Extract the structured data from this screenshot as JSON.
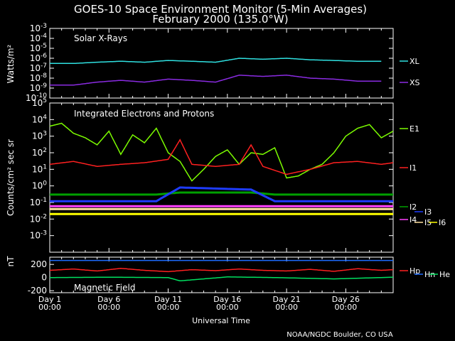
{
  "title_line1": "GOES-10 Space Environment Monitor (5-Min Averages)",
  "title_line2": "February 2000 (135.0°W)",
  "footer": "NOAA/NGDC Boulder, CO USA",
  "colors": {
    "background": "#000000",
    "axes": "#ffffff",
    "XL": "#2fe0e0",
    "XS": "#8a2be2",
    "E1": "#7cfc00",
    "I1": "#ff2020",
    "I2": "#00a000",
    "I3": "#1e3cff",
    "I4": "#ff40ff",
    "I5": "#ffe0a0",
    "I6": "#ffff00",
    "Hp": "#ff2020",
    "Hn": "#1e6cff",
    "He": "#00e060"
  },
  "chart_data": [
    {
      "type": "line",
      "panel_label": "Solar X-Rays",
      "ylabel": "Watts/m²",
      "yscale": "log",
      "ylim": [
        1e-10,
        0.001
      ],
      "y_tick_labels": [
        "10^-3",
        "10^-4",
        "10^-5",
        "10^-6",
        "10^-7",
        "10^-8",
        "10^-9",
        "10^-10"
      ],
      "xlim": [
        1,
        30
      ],
      "series": [
        {
          "name": "XL",
          "x": [
            1,
            3,
            5,
            7,
            9,
            11,
            13,
            15,
            17,
            19,
            21,
            23,
            25,
            27,
            29
          ],
          "values": [
            3e-07,
            3e-07,
            4e-07,
            5e-07,
            4e-07,
            6e-07,
            5e-07,
            4e-07,
            1e-06,
            8e-07,
            1e-06,
            7e-07,
            6e-07,
            5e-07,
            5e-07
          ]
        },
        {
          "name": "XS",
          "x": [
            1,
            3,
            5,
            7,
            9,
            11,
            13,
            15,
            17,
            19,
            21,
            23,
            25,
            27,
            29
          ],
          "values": [
            2e-09,
            2e-09,
            4e-09,
            6e-09,
            4e-09,
            8e-09,
            6e-09,
            4e-09,
            2e-08,
            1.5e-08,
            2e-08,
            1e-08,
            8e-09,
            5e-09,
            5e-09
          ]
        }
      ]
    },
    {
      "type": "line",
      "panel_label": "Integrated Electrons and Protons",
      "ylabel": "Counts/cm² sec sr",
      "yscale": "log",
      "ylim": [
        0.0001,
        100000.0
      ],
      "y_tick_labels": [
        "10^5",
        "10^4",
        "10^3",
        "10^2",
        "10^1",
        "10^0",
        "10^-1",
        "10^-2",
        "10^-3"
      ],
      "xlim": [
        1,
        30
      ],
      "series": [
        {
          "name": "E1",
          "x": [
            1,
            2,
            3,
            4,
            5,
            6,
            7,
            8,
            9,
            10,
            11,
            12,
            13,
            14,
            15,
            16,
            17,
            18,
            19,
            20,
            21,
            22,
            23,
            24,
            25,
            26,
            27,
            28,
            29,
            30
          ],
          "values": [
            4000,
            6000,
            1500,
            800,
            300,
            2000,
            80,
            1200,
            400,
            3000,
            100,
            30,
            2,
            10,
            60,
            150,
            20,
            100,
            80,
            200,
            3,
            4,
            10,
            20,
            100,
            1000,
            3000,
            5000,
            800,
            2000
          ]
        },
        {
          "name": "I1",
          "x": [
            1,
            3,
            5,
            7,
            9,
            11,
            12,
            13,
            15,
            17,
            18,
            19,
            21,
            23,
            25,
            27,
            29,
            30
          ],
          "values": [
            20,
            30,
            15,
            20,
            25,
            40,
            600,
            20,
            15,
            20,
            300,
            15,
            5,
            10,
            25,
            30,
            20,
            25
          ]
        },
        {
          "name": "I2",
          "x": [
            1,
            10,
            12,
            18,
            20,
            30
          ],
          "values": [
            0.3,
            0.3,
            0.4,
            0.4,
            0.3,
            0.3
          ]
        },
        {
          "name": "I3",
          "x": [
            1,
            10,
            12,
            18,
            20,
            30
          ],
          "values": [
            0.12,
            0.12,
            0.8,
            0.6,
            0.12,
            0.12
          ]
        },
        {
          "name": "I4",
          "x": [
            1,
            30
          ],
          "values": [
            0.06,
            0.06
          ]
        },
        {
          "name": "I5",
          "x": [
            1,
            30
          ],
          "values": [
            0.04,
            0.04
          ]
        },
        {
          "name": "I6",
          "x": [
            1,
            30
          ],
          "values": [
            0.02,
            0.02
          ]
        }
      ]
    },
    {
      "type": "line",
      "panel_label": "Magnetic Field",
      "ylabel": "nT",
      "ylim": [
        -230,
        310
      ],
      "y_ticks": [
        -200,
        0,
        200
      ],
      "xlim": [
        1,
        30
      ],
      "x_tick_labels": [
        {
          "day": 1,
          "line1": "Day  1",
          "line2": "00:00"
        },
        {
          "day": 6,
          "line1": "Day  6",
          "line2": "00:00"
        },
        {
          "day": 11,
          "line1": "Day 11",
          "line2": "00:00"
        },
        {
          "day": 16,
          "line1": "Day 16",
          "line2": "00:00"
        },
        {
          "day": 21,
          "line1": "Day 21",
          "line2": "00:00"
        },
        {
          "day": 26,
          "line1": "Day 26",
          "line2": "00:00"
        }
      ],
      "xlabel": "Universal Time",
      "series": [
        {
          "name": "Hp",
          "x": [
            1,
            3,
            5,
            7,
            9,
            11,
            13,
            15,
            17,
            19,
            21,
            23,
            25,
            27,
            29,
            30
          ],
          "values": [
            110,
            130,
            100,
            140,
            110,
            90,
            120,
            105,
            130,
            110,
            100,
            125,
            95,
            135,
            110,
            120
          ]
        },
        {
          "name": "Hn",
          "x": [
            1,
            30
          ],
          "values": [
            260,
            260
          ]
        },
        {
          "name": "He",
          "x": [
            1,
            6,
            11,
            12,
            16,
            20,
            25,
            30
          ],
          "values": [
            0,
            5,
            0,
            -50,
            10,
            0,
            -20,
            5
          ]
        }
      ]
    }
  ],
  "right_labels": [
    "XL",
    "XS",
    "E1",
    "I1",
    "I2",
    "I3",
    "I4",
    "I5",
    "I6",
    "Hp",
    "Hn",
    "He"
  ]
}
